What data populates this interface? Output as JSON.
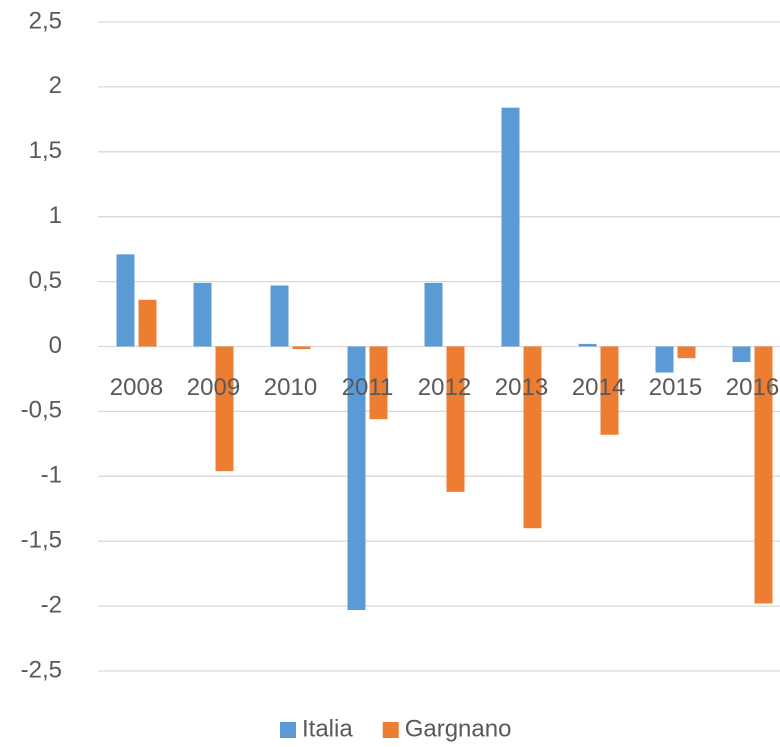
{
  "chart_data": {
    "type": "bar",
    "categories": [
      "2008",
      "2009",
      "2010",
      "2011",
      "2012",
      "2013",
      "2014",
      "2015",
      "2016"
    ],
    "series": [
      {
        "name": "Italia",
        "color": "#5b9bd5",
        "values": [
          0.71,
          0.49,
          0.47,
          -2.03,
          0.49,
          1.84,
          0.02,
          -0.2,
          -0.12
        ]
      },
      {
        "name": "Gargnano",
        "color": "#ed7d31",
        "values": [
          0.36,
          -0.96,
          -0.02,
          -0.56,
          -1.12,
          -1.4,
          -0.68,
          -0.09,
          -1.98
        ]
      }
    ],
    "ylim": [
      -2.5,
      2.5
    ],
    "yticks": [
      {
        "value": -2.5,
        "label": "-2,5"
      },
      -2,
      {
        "value": -1.5,
        "label": "-1,5"
      },
      -1,
      {
        "value": -0.5,
        "label": "-0,5"
      },
      0,
      {
        "value": 0.5,
        "label": "0,5"
      },
      1,
      {
        "value": 1.5,
        "label": "1,5"
      },
      2,
      {
        "value": 2.5,
        "label": "2,5"
      }
    ],
    "grid": true,
    "legend": "bottom"
  }
}
